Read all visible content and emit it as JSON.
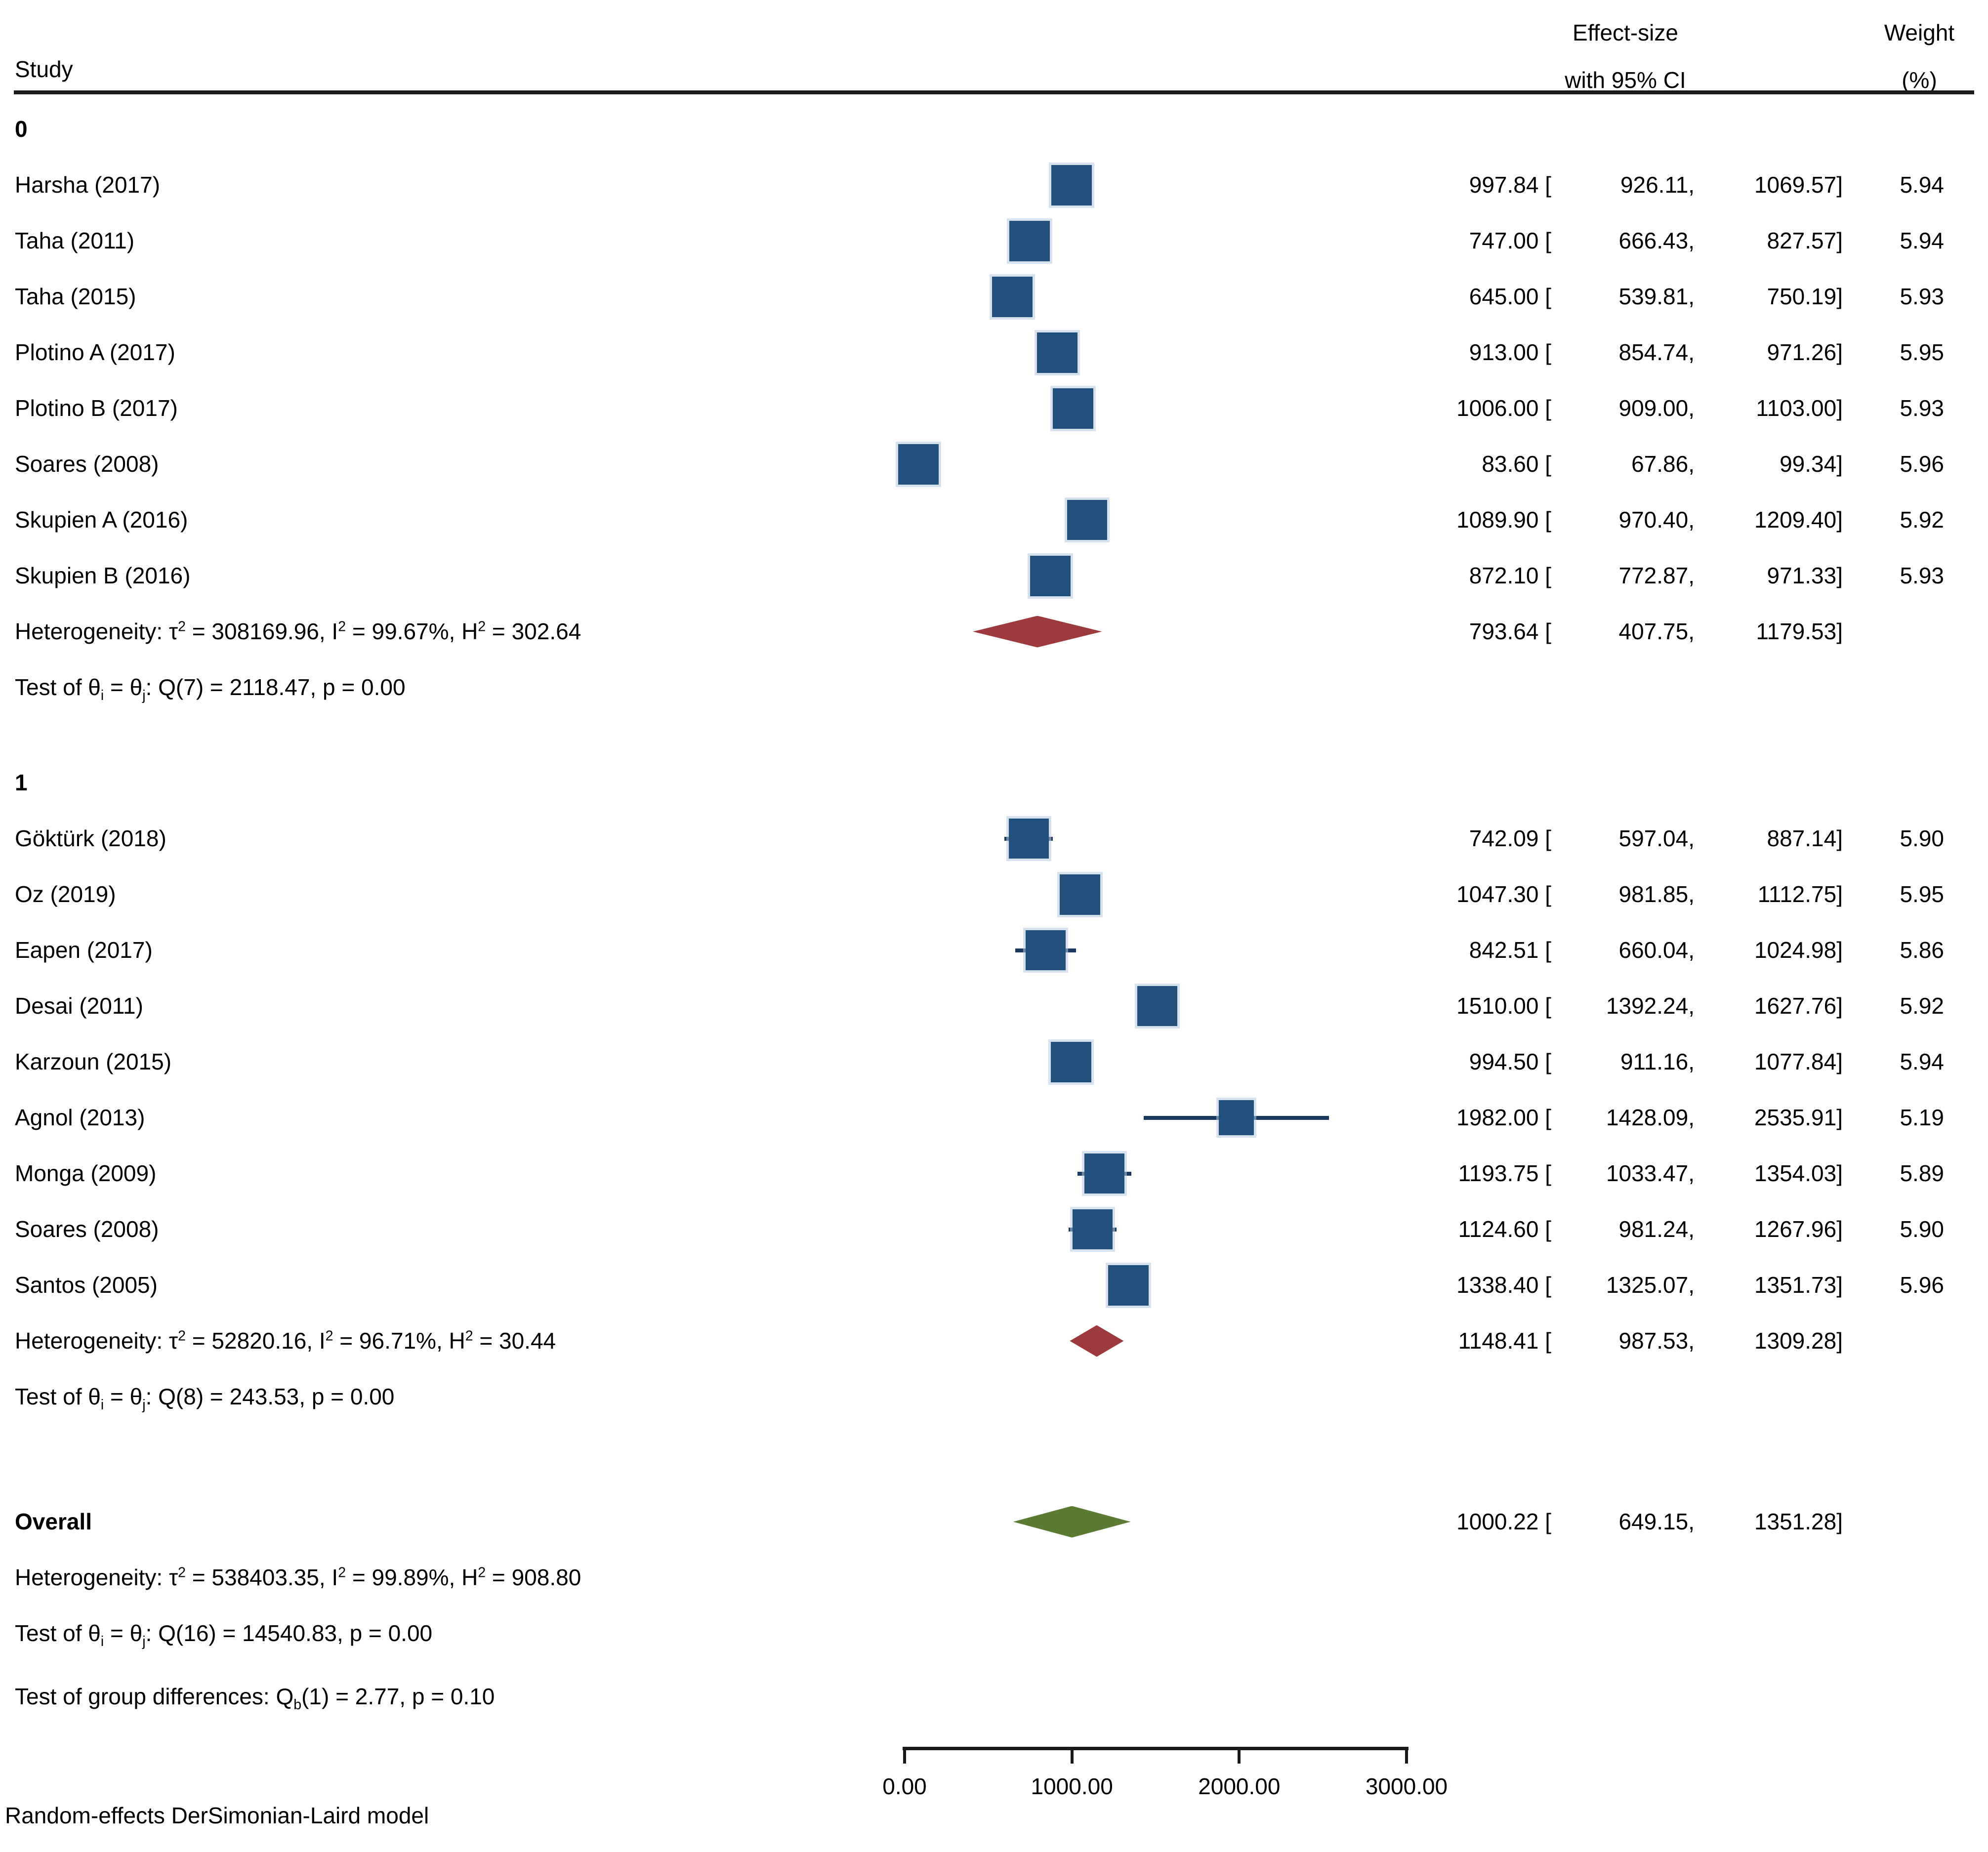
{
  "header": {
    "study": "Study",
    "effect_line1": "Effect-size",
    "effect_line2": "with 95% CI",
    "weight_line1": "Weight",
    "weight_line2": "(%)"
  },
  "colors": {
    "square": "#21517c",
    "square_halo": "#b6cbe2",
    "ci_line": "#1b3a5f",
    "group_diamond": "#9d3a3d",
    "overall_diamond": "#5a7b31",
    "header_rule": "#1c1c1c",
    "axis": "#1a1a1a"
  },
  "chart_data": {
    "type": "forest",
    "x_axis": {
      "range": [
        0,
        3000
      ],
      "ticks": [
        0,
        1000,
        2000,
        3000
      ],
      "tick_labels": [
        "0.00",
        "1000.00",
        "2000.00",
        "3000.00"
      ]
    },
    "groups": [
      {
        "label": "0",
        "studies": [
          {
            "name": "Harsha (2017)",
            "effect": 997.84,
            "ci_low": 926.11,
            "ci_high": 1069.57,
            "weight": 5.94
          },
          {
            "name": "Taha (2011)",
            "effect": 747.0,
            "ci_low": 666.43,
            "ci_high": 827.57,
            "weight": 5.94
          },
          {
            "name": "Taha (2015)",
            "effect": 645.0,
            "ci_low": 539.81,
            "ci_high": 750.19,
            "weight": 5.93
          },
          {
            "name": "Plotino A (2017)",
            "effect": 913.0,
            "ci_low": 854.74,
            "ci_high": 971.26,
            "weight": 5.95
          },
          {
            "name": "Plotino B (2017)",
            "effect": 1006.0,
            "ci_low": 909.0,
            "ci_high": 1103.0,
            "weight": 5.93
          },
          {
            "name": "Soares (2008)",
            "effect": 83.6,
            "ci_low": 67.86,
            "ci_high": 99.34,
            "weight": 5.96
          },
          {
            "name": "Skupien A (2016)",
            "effect": 1089.9,
            "ci_low": 970.4,
            "ci_high": 1209.4,
            "weight": 5.92
          },
          {
            "name": "Skupien B (2016)",
            "effect": 872.1,
            "ci_low": 772.87,
            "ci_high": 971.33,
            "weight": 5.93
          }
        ],
        "summary": {
          "effect": 793.64,
          "ci_low": 407.75,
          "ci_high": 1179.53
        },
        "heterogeneity_html": "Heterogeneity: τ<sup>2</sup> = 308169.96, I<sup>2</sup> = 99.67%, H<sup>2</sup> = 302.64",
        "test_html": "Test of θ<sub>i</sub> = θ<sub>j</sub>: Q(7) = 2118.47, p = 0.00"
      },
      {
        "label": "1",
        "studies": [
          {
            "name": "Göktürk (2018)",
            "effect": 742.09,
            "ci_low": 597.04,
            "ci_high": 887.14,
            "weight": 5.9
          },
          {
            "name": "Oz (2019)",
            "effect": 1047.3,
            "ci_low": 981.85,
            "ci_high": 1112.75,
            "weight": 5.95
          },
          {
            "name": "Eapen (2017)",
            "effect": 842.51,
            "ci_low": 660.04,
            "ci_high": 1024.98,
            "weight": 5.86
          },
          {
            "name": "Desai (2011)",
            "effect": 1510.0,
            "ci_low": 1392.24,
            "ci_high": 1627.76,
            "weight": 5.92
          },
          {
            "name": "Karzoun (2015)",
            "effect": 994.5,
            "ci_low": 911.16,
            "ci_high": 1077.84,
            "weight": 5.94
          },
          {
            "name": "Agnol (2013)",
            "effect": 1982.0,
            "ci_low": 1428.09,
            "ci_high": 2535.91,
            "weight": 5.19
          },
          {
            "name": "Monga (2009)",
            "effect": 1193.75,
            "ci_low": 1033.47,
            "ci_high": 1354.03,
            "weight": 5.89
          },
          {
            "name": "Soares (2008)",
            "effect": 1124.6,
            "ci_low": 981.24,
            "ci_high": 1267.96,
            "weight": 5.9
          },
          {
            "name": "Santos (2005)",
            "effect": 1338.4,
            "ci_low": 1325.07,
            "ci_high": 1351.73,
            "weight": 5.96
          }
        ],
        "summary": {
          "effect": 1148.41,
          "ci_low": 987.53,
          "ci_high": 1309.28
        },
        "heterogeneity_html": "Heterogeneity: τ<sup>2</sup> = 52820.16, I<sup>2</sup> = 96.71%, H<sup>2</sup> = 30.44",
        "test_html": "Test of θ<sub>i</sub> = θ<sub>j</sub>: Q(8) = 243.53, p = 0.00"
      }
    ],
    "overall": {
      "label": "Overall",
      "summary": {
        "effect": 1000.22,
        "ci_low": 649.15,
        "ci_high": 1351.28
      },
      "heterogeneity_html": "Heterogeneity: τ<sup>2</sup> = 538403.35, I<sup>2</sup> = 99.89%, H<sup>2</sup> = 908.80",
      "test_html": "Test of θ<sub>i</sub> = θ<sub>j</sub>: Q(16) = 14540.83, p = 0.00"
    },
    "group_difference_html": "Test of group differences: Q<sub>b</sub>(1) = 2.77, p = 0.10",
    "footnote": "Random-effects DerSimonian-Laird model"
  }
}
